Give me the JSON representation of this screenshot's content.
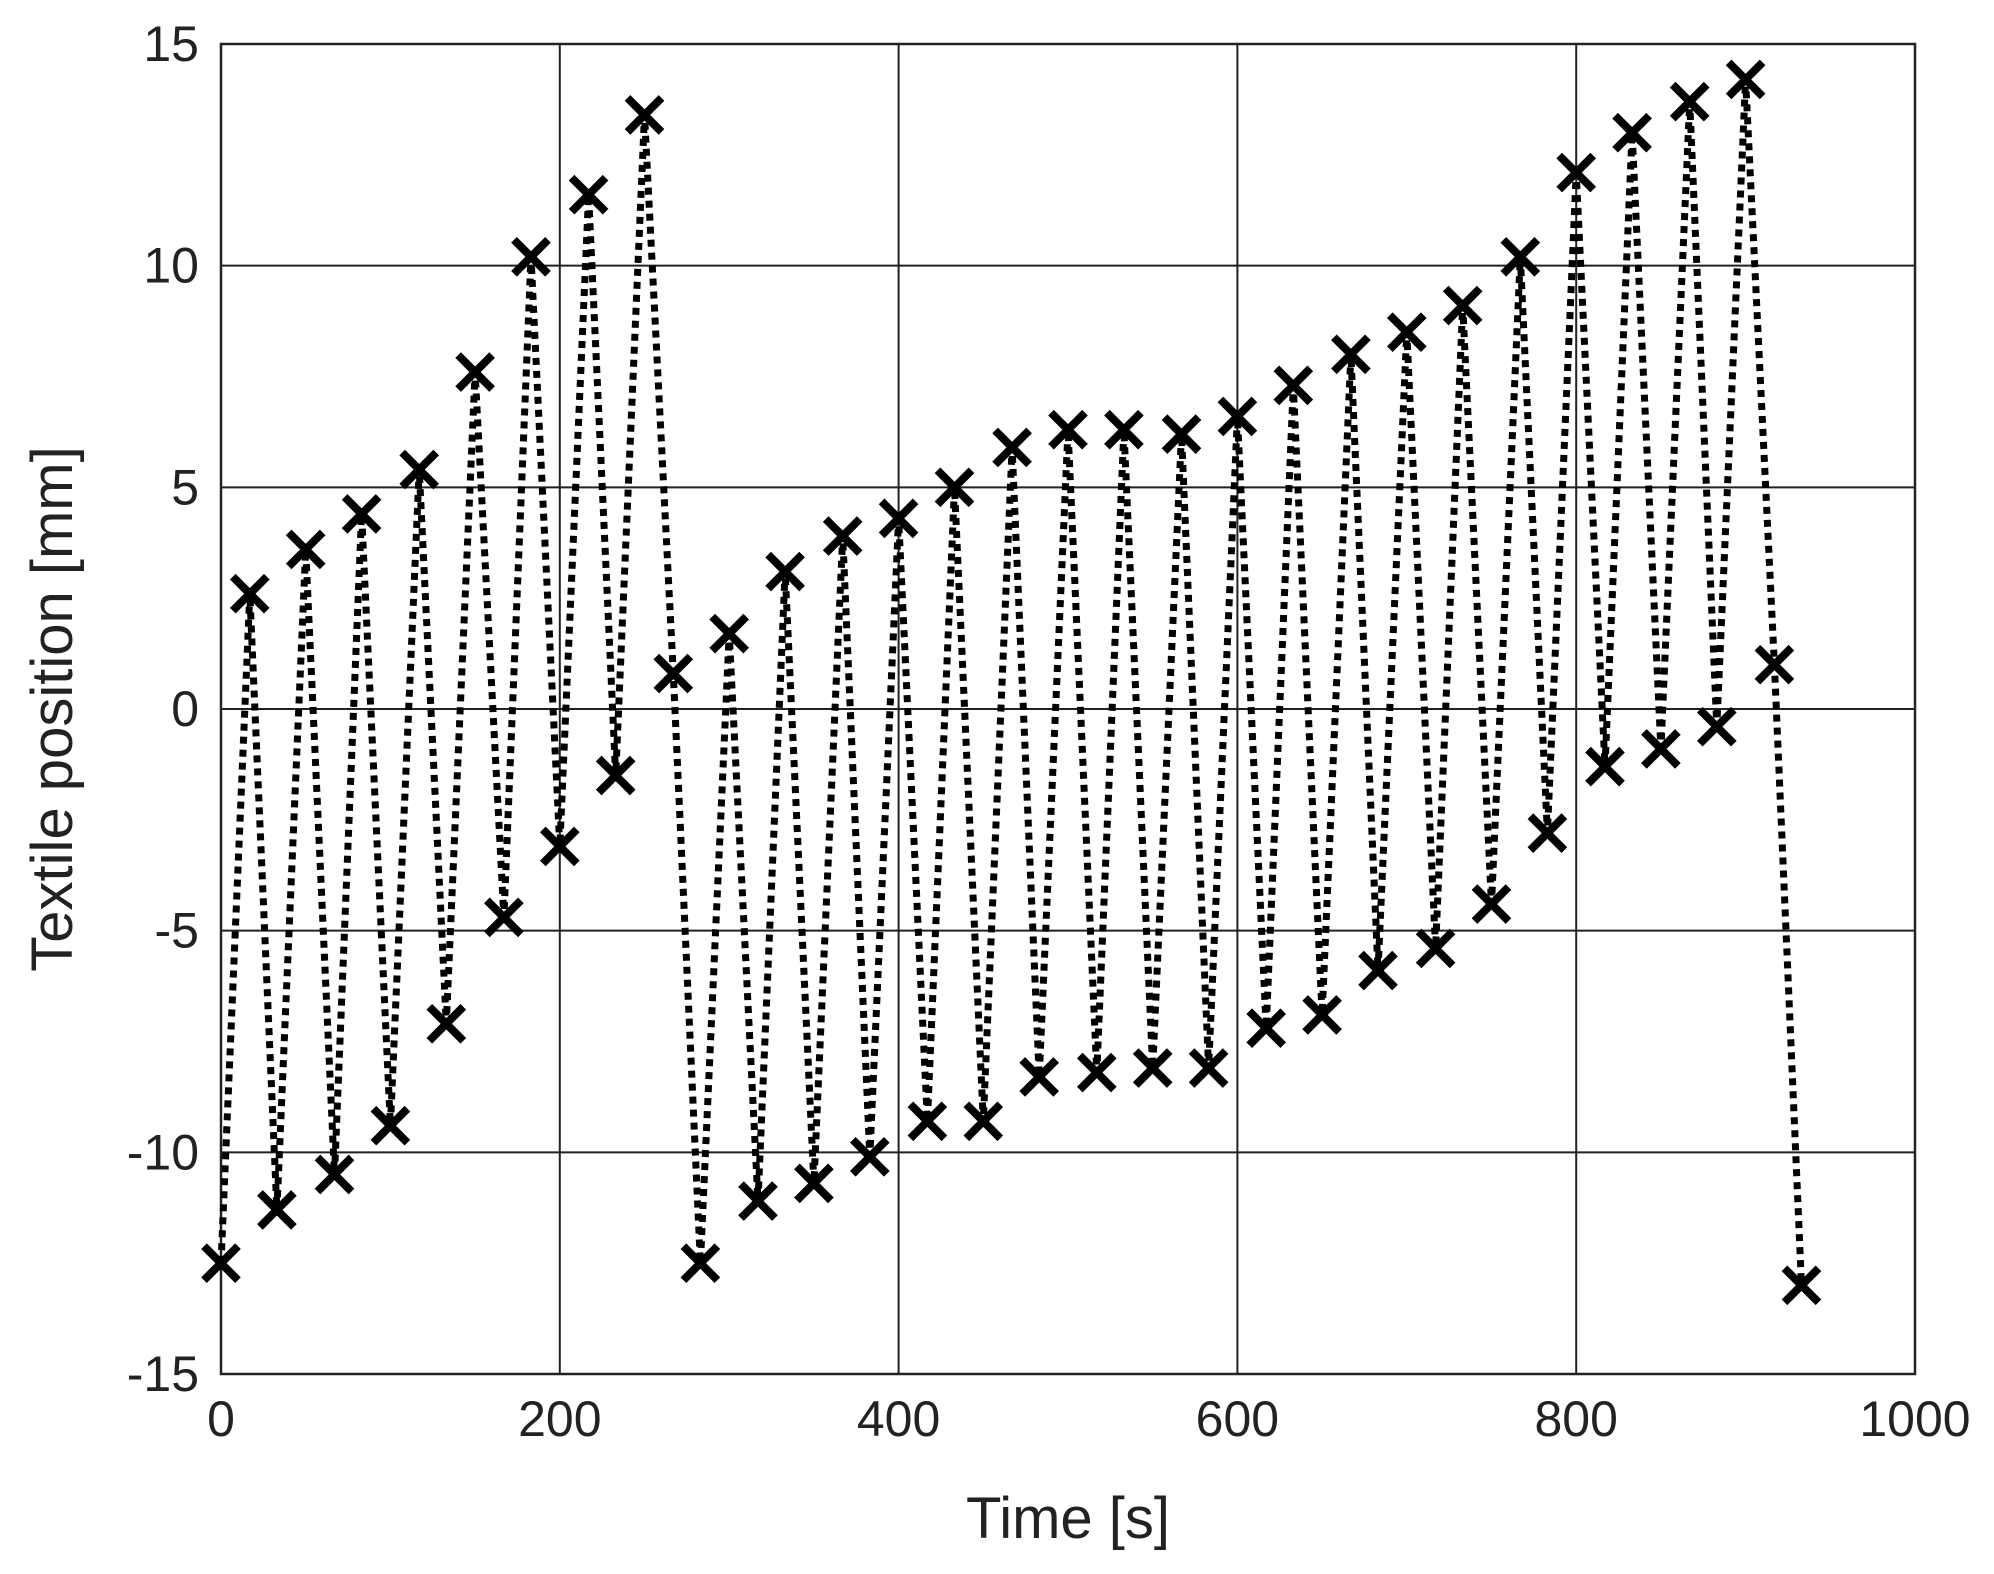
{
  "chart_data": {
    "type": "line",
    "xlabel": "Time [s]",
    "ylabel": "Textile position [mm]",
    "xlim": [
      0,
      1000
    ],
    "ylim": [
      -15,
      15
    ],
    "xticks": [
      "0",
      "200",
      "400",
      "600",
      "800",
      "1000"
    ],
    "yticks": [
      "15",
      "10",
      "5",
      "0",
      "-5",
      "-10",
      "-15"
    ],
    "grid": true,
    "line_style": "dotted",
    "marker": "x",
    "color": "#000000",
    "series": [
      {
        "x": [
          0,
          17,
          33,
          50,
          67,
          83,
          100,
          117,
          133,
          150,
          167,
          183,
          200,
          217,
          233,
          250,
          267,
          283,
          300,
          317,
          333,
          350,
          367,
          383,
          400,
          417,
          433,
          450,
          467,
          483,
          500,
          517,
          533,
          550,
          567,
          583,
          600,
          617,
          633,
          650,
          667,
          683,
          700,
          717,
          733,
          750,
          767,
          783,
          800,
          817,
          833,
          850,
          867,
          883,
          900,
          917,
          933
        ],
        "y": [
          -12.5,
          2.6,
          -11.3,
          3.6,
          -10.5,
          4.4,
          -9.4,
          5.4,
          -7.1,
          7.6,
          -4.7,
          10.2,
          -3.1,
          11.6,
          -1.5,
          13.4,
          0.8,
          -12.5,
          1.7,
          -11.1,
          3.1,
          -10.7,
          3.9,
          -10.1,
          4.3,
          -9.3,
          5.0,
          -9.3,
          5.9,
          -8.3,
          6.3,
          -8.2,
          6.3,
          -8.1,
          6.2,
          -8.1,
          6.6,
          -7.2,
          7.3,
          -6.9,
          8.0,
          -5.9,
          8.5,
          -5.4,
          9.1,
          -4.4,
          10.2,
          -2.8,
          12.1,
          -1.3,
          13.0,
          -0.9,
          13.7,
          -0.4,
          14.2,
          1.0,
          -13.0
        ]
      }
    ]
  }
}
